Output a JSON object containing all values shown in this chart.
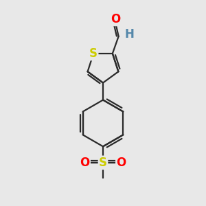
{
  "background_color": "#e8e8e8",
  "bond_color": "#2a2a2a",
  "bond_width": 1.6,
  "atom_colors": {
    "O": "#ff0000",
    "S_thiophene": "#cccc00",
    "S_sulfonyl": "#cccc00",
    "H": "#5588aa"
  },
  "font_size_atoms": 12,
  "figsize": [
    3.0,
    3.0
  ],
  "dpi": 100
}
